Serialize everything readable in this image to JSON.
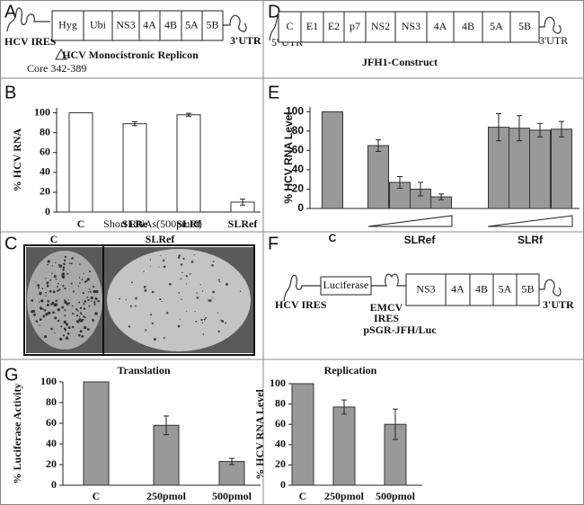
{
  "diagram_a": {
    "panel": "A",
    "left": "HCV IRES",
    "right": "3'UTR",
    "cells": [
      "Hyg",
      "Ubi",
      "NS3",
      "4A",
      "4B",
      "5A",
      "5B"
    ],
    "title": "HCV Monocistronic Replicon",
    "note": "Core 342-389"
  },
  "diagram_d": {
    "panel": "D",
    "left": "5' UTR",
    "right": "3'UTR",
    "cells": [
      "C",
      "E1",
      "E2",
      "p7",
      "NS2",
      "NS3",
      "4A",
      "4B",
      "5A",
      "5B"
    ],
    "title": "JFH1-Construct"
  },
  "image_c": {
    "panel": "C",
    "labels": [
      "C",
      "SLRef"
    ]
  },
  "diagram_f": {
    "panel": "F",
    "left": "HCV IRES",
    "reporter": "Luciferase",
    "ires": [
      "EMCV",
      "IRES"
    ],
    "title": "pSGR-JFH/Luc",
    "cells": [
      "NS3",
      "4A",
      "4B",
      "5A",
      "5B"
    ],
    "right": "3'UTR"
  },
  "chart_data": [
    {
      "type": "bar",
      "panel": "B",
      "ylabel": "% HCV RNA",
      "xlabel": "Short RNAs(500pmol)",
      "categories": [
        "C",
        "SLRe",
        "SLRf",
        "SLRef"
      ],
      "values": [
        100,
        89,
        98,
        10
      ],
      "errors": [
        null,
        2,
        1.5,
        3
      ],
      "color": "#ffffff",
      "ylim": [
        0,
        105
      ],
      "yticks": [
        0,
        20,
        40,
        60,
        80,
        100
      ]
    },
    {
      "type": "bar",
      "panel": "E",
      "ylabel": "% HCV RNA Level",
      "categories": [
        "C",
        null,
        null,
        null,
        null,
        null,
        null,
        null,
        null
      ],
      "group_labels": [
        "SLRef",
        "SLRf"
      ],
      "values": [
        100,
        65,
        27,
        20,
        12,
        84,
        83,
        81,
        82
      ],
      "errors": [
        null,
        6,
        6,
        7,
        3,
        14,
        13,
        7,
        8
      ],
      "color": "#999999",
      "ylim": [
        0,
        105
      ],
      "yticks": [
        0,
        20,
        40,
        60,
        80,
        100
      ]
    },
    {
      "type": "bar",
      "panel": "G",
      "title": "Translation",
      "ylabel": "% Luciferase Activity",
      "categories": [
        "C",
        "250pmol",
        "500pmol"
      ],
      "values": [
        100,
        58,
        23
      ],
      "errors": [
        null,
        9,
        3
      ],
      "color": "#999999",
      "ylim": [
        0,
        100
      ],
      "yticks": [
        0,
        20,
        40,
        60,
        80,
        100
      ]
    },
    {
      "type": "bar",
      "title": "Replication",
      "ylabel": "% HCV RNA Level",
      "categories": [
        "C",
        "250pmol",
        "500pmol"
      ],
      "values": [
        100,
        77,
        60
      ],
      "errors": [
        null,
        7,
        15
      ],
      "color": "#999999",
      "ylim": [
        0,
        100
      ],
      "yticks": [
        0,
        20,
        40,
        60,
        80,
        100
      ]
    }
  ]
}
